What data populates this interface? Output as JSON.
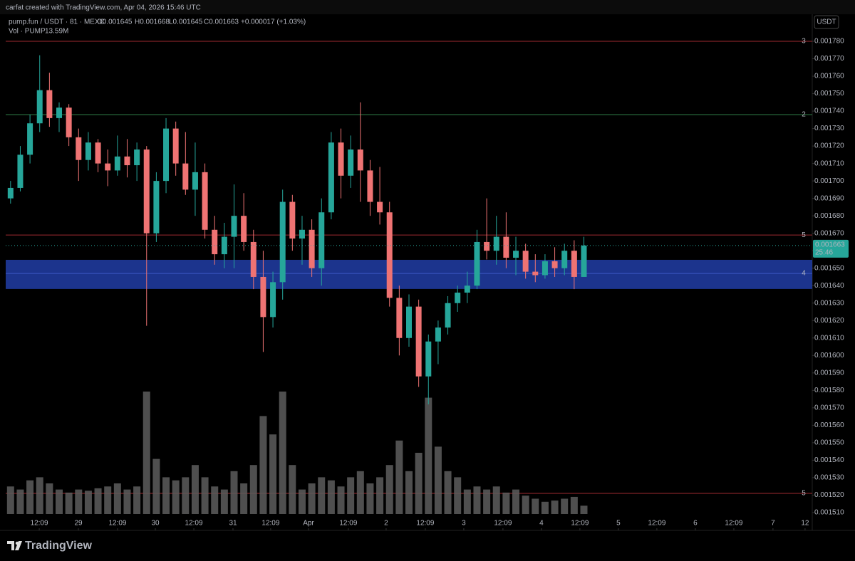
{
  "chart_data": {
    "type": "candlestick",
    "attribution": "carfat created with TradingView.com, Apr 04, 2026 15:46 UTC",
    "symbol": "pump.fun / USDT · 81 · MEXC",
    "ohlc_header": [
      "O0.001645",
      "H0.001668",
      "L0.001645",
      "C0.001663",
      "+0.000017 (+1.03%)"
    ],
    "volume_title": "Vol · PUMP",
    "volume_value": "13.59M",
    "currency": "USDT",
    "brand": "TradingView",
    "up_color": "#26a69a",
    "down_color": "#ef7373",
    "volume_color": "#5d5d5d",
    "xlim": [
      0,
      83
    ],
    "xticks": [
      {
        "value": 3.45,
        "label": "12:09"
      },
      {
        "value": 7.48,
        "label": "29"
      },
      {
        "value": 11.51,
        "label": "12:09"
      },
      {
        "value": 15.4,
        "label": "30"
      },
      {
        "value": 19.36,
        "label": "12:09"
      },
      {
        "value": 23.39,
        "label": "31"
      },
      {
        "value": 27.27,
        "label": "12:09"
      },
      {
        "value": 31.16,
        "label": "Apr"
      },
      {
        "value": 35.26,
        "label": "12:09"
      },
      {
        "value": 39.15,
        "label": "2"
      },
      {
        "value": 43.18,
        "label": "12:09"
      },
      {
        "value": 47.14,
        "label": "3"
      },
      {
        "value": 51.17,
        "label": "12:09"
      },
      {
        "value": 55.13,
        "label": "4"
      },
      {
        "value": 59.09,
        "label": "12:09"
      },
      {
        "value": 63.05,
        "label": "5"
      },
      {
        "value": 67.01,
        "label": "12:09"
      },
      {
        "value": 70.97,
        "label": "6"
      },
      {
        "value": 74.93,
        "label": "12:09"
      },
      {
        "value": 78.96,
        "label": "7"
      },
      {
        "value": 82.26,
        "label": "12"
      }
    ],
    "ylim": [
      0.001501,
      0.0017955
    ],
    "yticks": [
      {
        "value": 0.00178,
        "label": "0.001780"
      },
      {
        "value": 0.00177,
        "label": "0.001770"
      },
      {
        "value": 0.00176,
        "label": "0.001760"
      },
      {
        "value": 0.00175,
        "label": "0.001750"
      },
      {
        "value": 0.00174,
        "label": "0.001740"
      },
      {
        "value": 0.00173,
        "label": "0.001730"
      },
      {
        "value": 0.00172,
        "label": "0.001720"
      },
      {
        "value": 0.00171,
        "label": "0.001710"
      },
      {
        "value": 0.0017,
        "label": "0.001700"
      },
      {
        "value": 0.00169,
        "label": "0.001690"
      },
      {
        "value": 0.00168,
        "label": "0.001680"
      },
      {
        "value": 0.00167,
        "label": "0.001670"
      },
      {
        "value": 0.00166,
        "label": "0.001660"
      },
      {
        "value": 0.00165,
        "label": "0.001650"
      },
      {
        "value": 0.00164,
        "label": "0.001640"
      },
      {
        "value": 0.00163,
        "label": "0.001630"
      },
      {
        "value": 0.00162,
        "label": "0.001620"
      },
      {
        "value": 0.00161,
        "label": "0.001610"
      },
      {
        "value": 0.0016,
        "label": "0.001600"
      },
      {
        "value": 0.00159,
        "label": "0.001590"
      },
      {
        "value": 0.00158,
        "label": "0.001580"
      },
      {
        "value": 0.00157,
        "label": "0.001570"
      },
      {
        "value": 0.00156,
        "label": "0.001560"
      },
      {
        "value": 0.00155,
        "label": "0.001550"
      },
      {
        "value": 0.00154,
        "label": "0.001540"
      },
      {
        "value": 0.00153,
        "label": "0.001530"
      },
      {
        "value": 0.00152,
        "label": "0.001520"
      },
      {
        "value": 0.00151,
        "label": "0.001510"
      }
    ],
    "levels": [
      {
        "value": 0.00178,
        "color": "#9e2a2f",
        "label": "3"
      },
      {
        "value": 0.001738,
        "color": "#2e7d46",
        "label": "2"
      },
      {
        "value": 0.001669,
        "color": "#9e2a2f",
        "label": "5"
      },
      {
        "value": 0.001521,
        "color": "#9e2a2f",
        "label": "5"
      }
    ],
    "zone": {
      "from": 0.0016381,
      "to": 0.0016548,
      "mid": 0.001647,
      "color": "#1f3a9c",
      "label": "4"
    },
    "last_price": 0.001663,
    "countdown": "25:46",
    "open": [
      0.00169,
      0.001696,
      0.001715,
      0.001733,
      0.001752,
      0.001736,
      0.001742,
      0.001725,
      0.001712,
      0.001722,
      0.00171,
      0.001706,
      0.001714,
      0.001709,
      0.001718,
      0.00167,
      0.0017,
      0.00173,
      0.00171,
      0.001695,
      0.001705,
      0.001672,
      0.001658,
      0.001668,
      0.00168,
      0.001665,
      0.001645,
      0.001622,
      0.001642,
      0.001688,
      0.001667,
      0.001672,
      0.00165,
      0.001682,
      0.001722,
      0.001703,
      0.001718,
      0.001706,
      0.001688,
      0.001682,
      0.001633,
      0.00161,
      0.001628,
      0.001588,
      0.001608,
      0.001616,
      0.00163,
      0.001636,
      0.00164,
      0.001665,
      0.00166,
      0.001668,
      0.001656,
      0.00166,
      0.001648,
      0.001646,
      0.001654,
      0.00165,
      0.00166,
      0.001645
    ],
    "high": [
      0.0017,
      0.00172,
      0.001738,
      0.001772,
      0.001762,
      0.001745,
      0.001744,
      0.00173,
      0.001728,
      0.001724,
      0.001718,
      0.001726,
      0.001724,
      0.001722,
      0.00172,
      0.001705,
      0.001736,
      0.001734,
      0.001728,
      0.001722,
      0.00171,
      0.00168,
      0.001676,
      0.001698,
      0.001693,
      0.001672,
      0.00166,
      0.001648,
      0.001695,
      0.001692,
      0.00168,
      0.001678,
      0.00169,
      0.001728,
      0.00173,
      0.001726,
      0.001745,
      0.001712,
      0.001708,
      0.001688,
      0.00164,
      0.001635,
      0.001632,
      0.001612,
      0.00162,
      0.001634,
      0.00164,
      0.001648,
      0.001672,
      0.00169,
      0.00168,
      0.001682,
      0.001668,
      0.001664,
      0.001658,
      0.001658,
      0.001662,
      0.001664,
      0.001666,
      0.001668
    ],
    "low": [
      0.001687,
      0.001694,
      0.00171,
      0.001728,
      0.001731,
      0.001728,
      0.00172,
      0.0017,
      0.001706,
      0.001705,
      0.001697,
      0.001703,
      0.001702,
      0.0017,
      0.001617,
      0.001665,
      0.001693,
      0.001703,
      0.001692,
      0.00168,
      0.001667,
      0.001652,
      0.00165,
      0.00165,
      0.00166,
      0.001638,
      0.001602,
      0.001616,
      0.001632,
      0.00166,
      0.001652,
      0.001645,
      0.00164,
      0.001678,
      0.00169,
      0.001696,
      0.001688,
      0.00168,
      0.001675,
      0.001628,
      0.0016,
      0.001605,
      0.001582,
      0.001572,
      0.001595,
      0.001612,
      0.001625,
      0.00163,
      0.001638,
      0.001655,
      0.001652,
      0.00165,
      0.001646,
      0.001644,
      0.001642,
      0.001644,
      0.001645,
      0.001646,
      0.001638,
      0.001645
    ],
    "close": [
      0.001696,
      0.001715,
      0.001733,
      0.001752,
      0.001736,
      0.001742,
      0.001725,
      0.001712,
      0.001722,
      0.00171,
      0.001706,
      0.001714,
      0.001709,
      0.001718,
      0.00167,
      0.0017,
      0.00173,
      0.00171,
      0.001695,
      0.001705,
      0.001672,
      0.001658,
      0.001668,
      0.00168,
      0.001665,
      0.001645,
      0.001622,
      0.001642,
      0.001688,
      0.001667,
      0.001672,
      0.00165,
      0.001682,
      0.001722,
      0.001703,
      0.001718,
      0.001706,
      0.001688,
      0.001682,
      0.001633,
      0.00161,
      0.001628,
      0.001588,
      0.001608,
      0.001616,
      0.00163,
      0.001636,
      0.00164,
      0.001665,
      0.00166,
      0.001668,
      0.001656,
      0.00166,
      0.001648,
      0.001646,
      0.001654,
      0.00165,
      0.00166,
      0.001645,
      0.001663
    ],
    "volume": [
      45,
      40,
      55,
      60,
      50,
      40,
      35,
      40,
      38,
      42,
      45,
      50,
      40,
      45,
      200,
      90,
      60,
      55,
      60,
      80,
      60,
      45,
      40,
      70,
      50,
      80,
      160,
      130,
      200,
      80,
      40,
      50,
      60,
      55,
      45,
      60,
      70,
      50,
      60,
      80,
      120,
      70,
      100,
      190,
      110,
      70,
      60,
      40,
      45,
      40,
      45,
      35,
      40,
      30,
      25,
      20,
      22,
      25,
      28,
      13.59
    ]
  }
}
